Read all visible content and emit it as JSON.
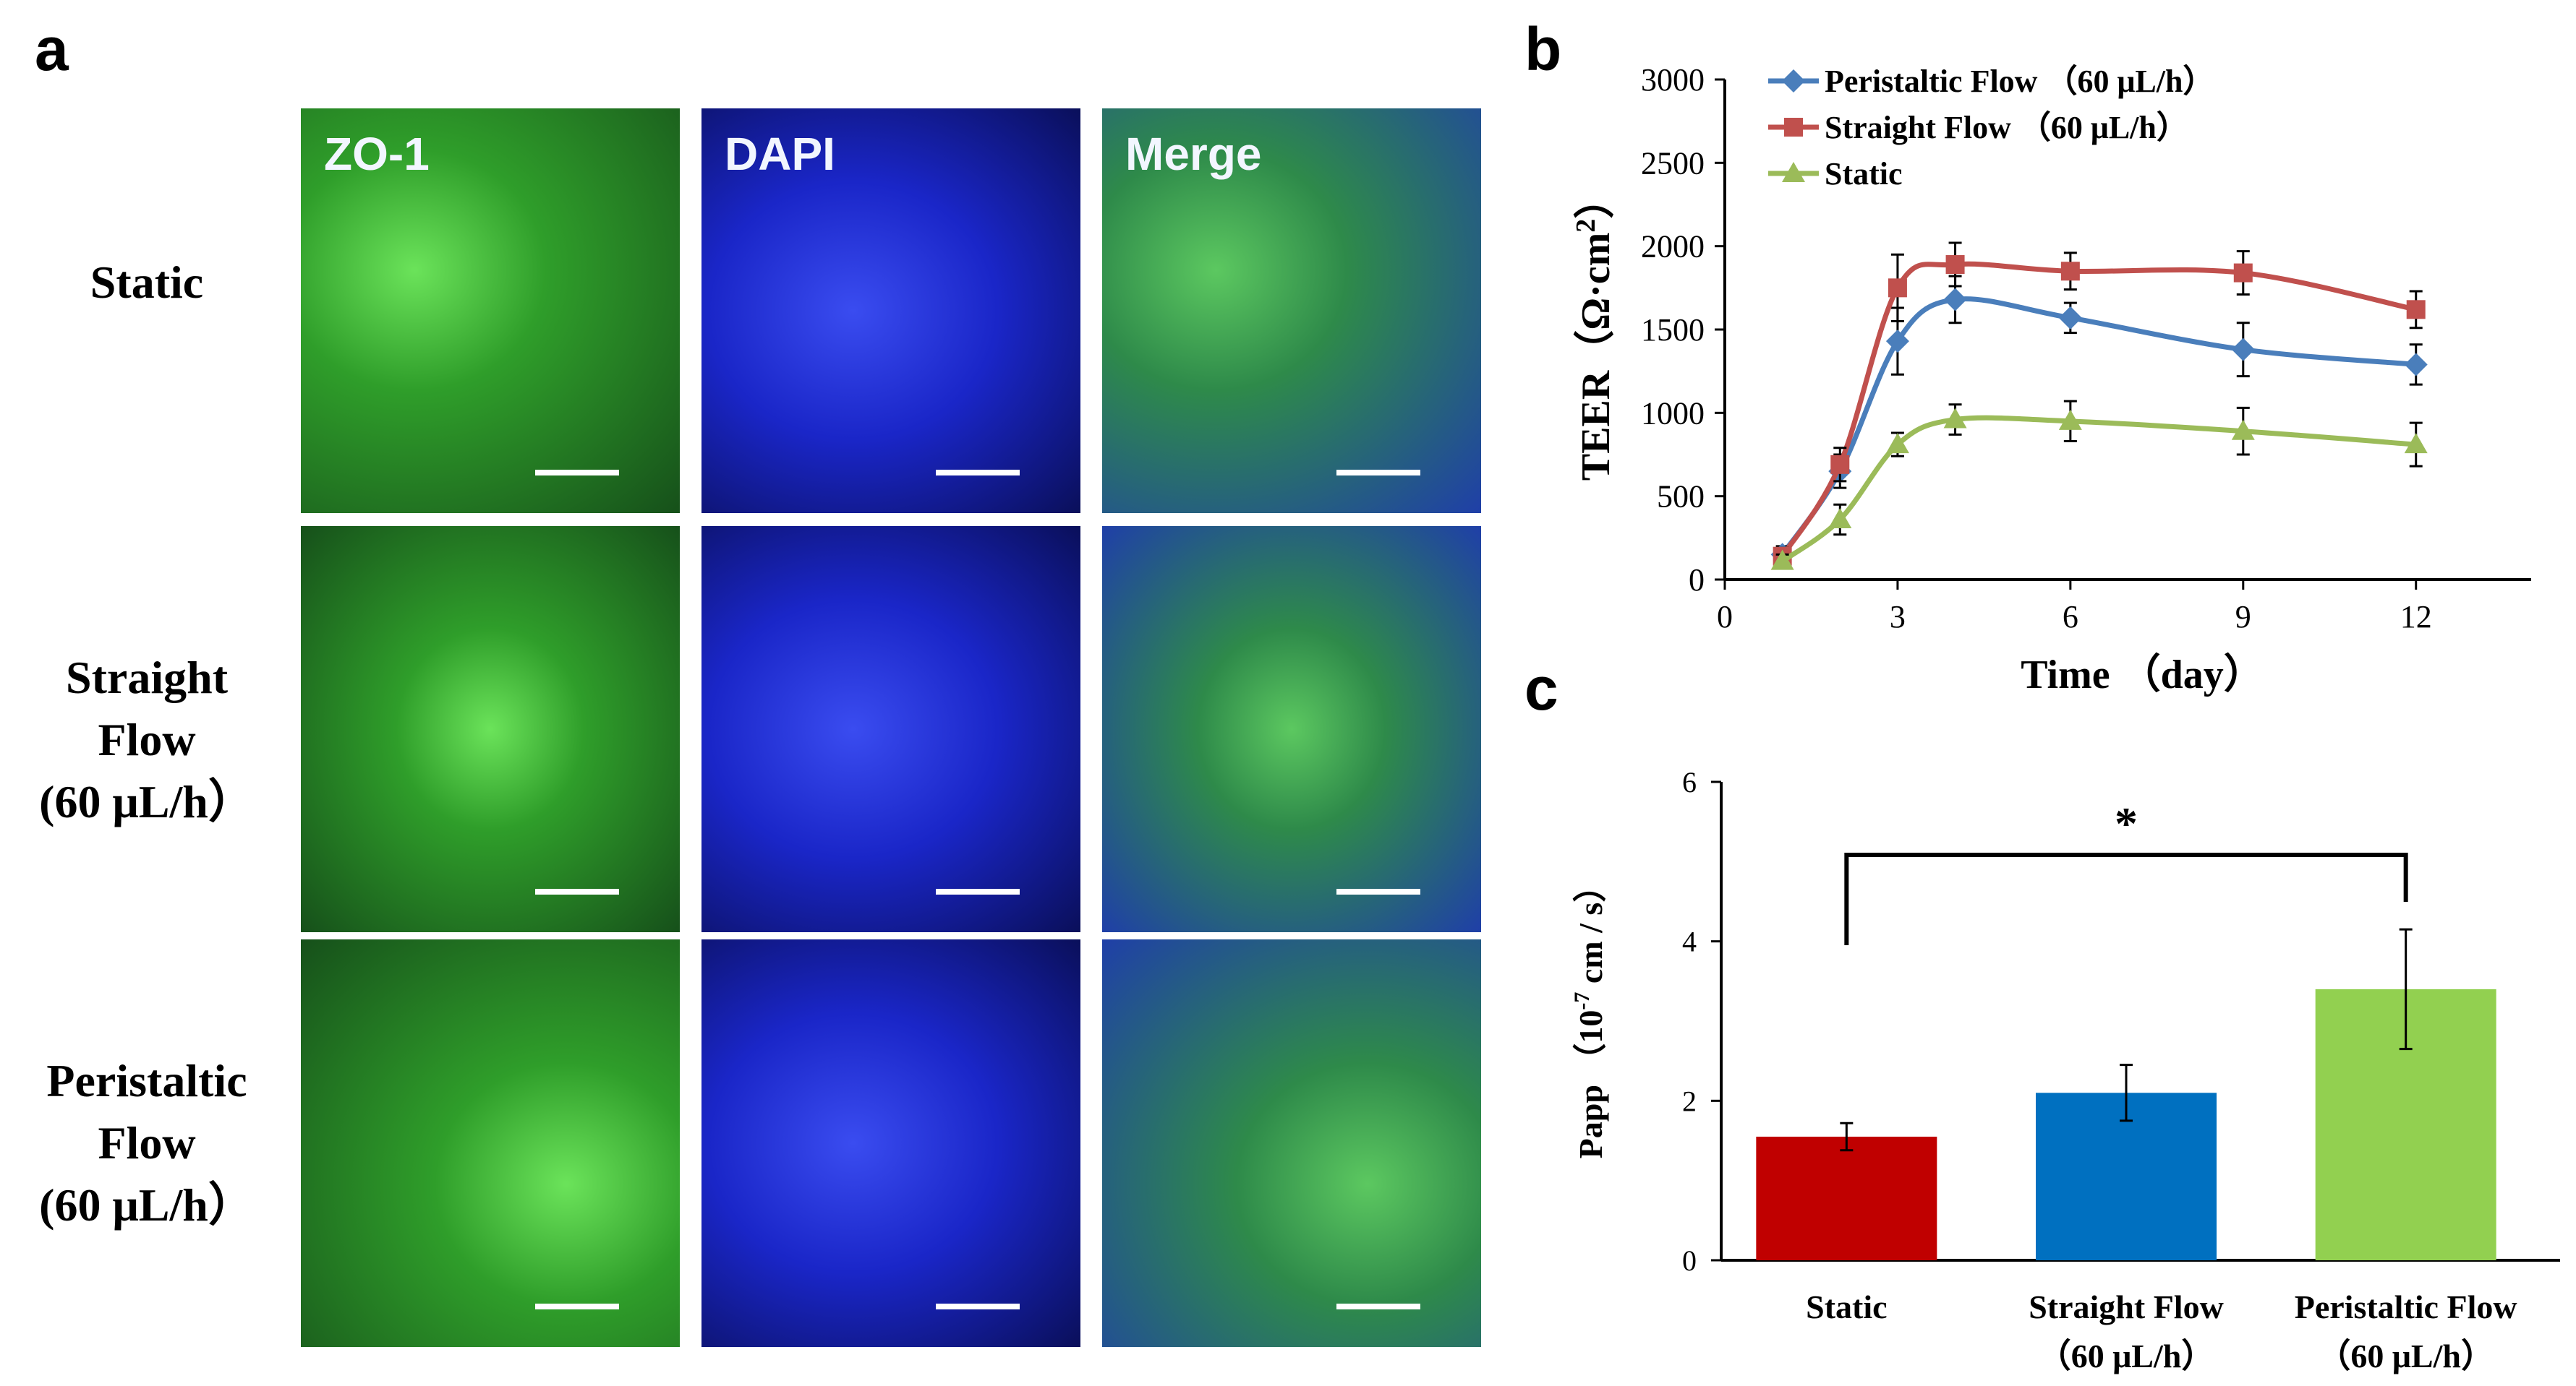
{
  "panel_a": {
    "letter": "a",
    "columns": [
      {
        "label": "ZO-1",
        "stain": "green"
      },
      {
        "label": "DAPI",
        "stain": "blue"
      },
      {
        "label": "Merge",
        "stain": "merge"
      }
    ],
    "rows": [
      {
        "label": "Static"
      },
      {
        "label": "Straight\nFlow\n(60 μL/h）"
      },
      {
        "label": "Peristaltic\nFlow\n(60 μL/h）"
      }
    ],
    "colors": {
      "green": "#2f9e2a",
      "blue": "#1a26c8",
      "merge_a": "#2e8a4a",
      "merge_b": "#1f3fa8"
    }
  },
  "panel_b": {
    "letter": "b"
  },
  "panel_c": {
    "letter": "c"
  },
  "chart_data": [
    {
      "type": "line",
      "panel": "b",
      "title": "",
      "xlabel": "Time （day）",
      "ylabel": "TEER（Ω·cm²）",
      "ylabel_main": "TEER（Ω·cm",
      "ylabel_sup": "2",
      "ylabel_close": "）",
      "xlim": [
        0,
        14
      ],
      "ylim": [
        0,
        3000
      ],
      "xticks": [
        0,
        3,
        6,
        9,
        12
      ],
      "yticks": [
        0,
        500,
        1000,
        1500,
        2000,
        2500,
        3000
      ],
      "x": [
        1,
        2,
        3,
        4,
        6,
        9,
        12
      ],
      "series": [
        {
          "name": "Peristaltic Flow （60 μL/h）",
          "color": "#4a7ebb",
          "marker": "diamond",
          "values": [
            150,
            650,
            1430,
            1680,
            1570,
            1380,
            1290
          ],
          "errors": [
            50,
            100,
            200,
            140,
            90,
            160,
            120
          ]
        },
        {
          "name": "Straight Flow  （60 μL/h）",
          "color": "#c0504d",
          "marker": "square",
          "values": [
            140,
            690,
            1750,
            1890,
            1850,
            1840,
            1620
          ],
          "errors": [
            50,
            100,
            200,
            130,
            110,
            130,
            110
          ]
        },
        {
          "name": "Static",
          "color": "#9bbb59",
          "marker": "triangle",
          "values": [
            110,
            360,
            810,
            960,
            950,
            890,
            810
          ],
          "errors": [
            40,
            90,
            70,
            90,
            120,
            140,
            130
          ]
        }
      ]
    },
    {
      "type": "bar",
      "panel": "c",
      "title": "",
      "ylabel": "Papp （10⁻⁷ cm / s）",
      "ylabel_main": "Papp  （10",
      "ylabel_sup": "-7",
      "ylabel_rest": " cm / s）",
      "ylim": [
        0,
        6
      ],
      "yticks": [
        0,
        2,
        4,
        6
      ],
      "categories": [
        {
          "line1": "Static",
          "line2": ""
        },
        {
          "line1": "Straight Flow",
          "line2": "（60 μL/h）"
        },
        {
          "line1": "Peristaltic Flow",
          "line2": "（60 μL/h）"
        }
      ],
      "values": [
        1.55,
        2.1,
        3.4
      ],
      "errors": [
        0.17,
        0.35,
        0.75
      ],
      "colors": [
        "#c00000",
        "#0070c0",
        "#92d050"
      ],
      "significance": {
        "from": 0,
        "to": 2,
        "label": "*"
      }
    }
  ]
}
